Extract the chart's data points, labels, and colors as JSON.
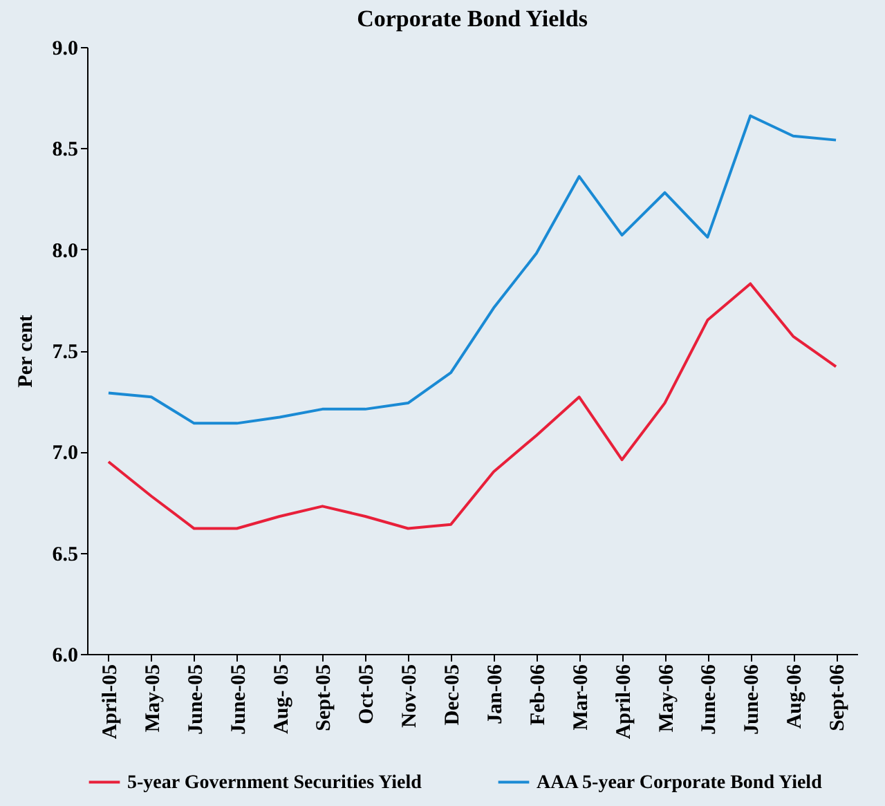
{
  "chart_data": {
    "type": "line",
    "title": "Corporate Bond Yields",
    "ylabel": "Per cent",
    "categories": [
      "April-05",
      "May-05",
      "June-05",
      "June-05",
      "Aug- 05",
      "Sept-05",
      "Oct-05",
      "Nov-05",
      "Dec-05",
      "Jan-06",
      "Feb-06",
      "Mar-06",
      "April-06",
      "May-06",
      "June-06",
      "June-06",
      "Aug-06",
      "Sept-06"
    ],
    "series": [
      {
        "name": "5-year Government Securities Yield",
        "color": "#e8203a",
        "values": [
          6.95,
          6.78,
          6.62,
          6.62,
          6.68,
          6.73,
          6.68,
          6.62,
          6.64,
          6.9,
          7.08,
          7.27,
          6.96,
          7.24,
          7.65,
          7.83,
          7.57,
          7.42
        ]
      },
      {
        "name": "AAA 5-year Corporate Bond Yield",
        "color": "#1a8ad4",
        "values": [
          7.29,
          7.27,
          7.14,
          7.14,
          7.17,
          7.21,
          7.21,
          7.24,
          7.39,
          7.71,
          7.98,
          8.36,
          8.07,
          8.28,
          8.06,
          8.66,
          8.56,
          8.54
        ]
      }
    ],
    "ylim": [
      6.0,
      9.0
    ],
    "yticks": [
      {
        "value": 6,
        "label": "6.0"
      },
      {
        "value": 6.5,
        "label": "6.5"
      },
      {
        "value": 7,
        "label": "7.0"
      },
      {
        "value": 7.5,
        "label": "7.5"
      },
      {
        "value": 8,
        "label": "8.0"
      },
      {
        "value": 8.5,
        "label": "8.5"
      },
      {
        "value": 9,
        "label": "9.0"
      }
    ],
    "grid": false,
    "legend": "bottom",
    "marker": "none",
    "line_style": "solid"
  }
}
